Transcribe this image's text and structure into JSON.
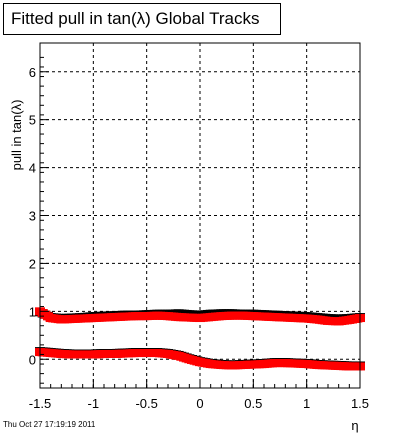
{
  "chart_data": {
    "type": "scatter",
    "title": "Fitted pull in tan(λ)  Global Tracks",
    "xlabel": "η",
    "ylabel": "pull in tan(λ)",
    "xlim": [
      -1.5,
      1.5
    ],
    "ylim": [
      -0.6,
      6.6
    ],
    "x_ticks": [
      "-1.5",
      "-1",
      "-0.5",
      "0",
      "0.5",
      "1",
      "1.5"
    ],
    "y_ticks": [
      "0",
      "1",
      "2",
      "3",
      "4",
      "5",
      "6"
    ],
    "grid": true,
    "series": [
      {
        "color": "#000000",
        "x": [
          -1.5,
          -1.4,
          -1.3,
          -1.2,
          -1.1,
          -1.0,
          -0.9,
          -0.8,
          -0.7,
          -0.6,
          -0.5,
          -0.4,
          -0.3,
          -0.2,
          -0.1,
          0.0,
          0.1,
          0.2,
          0.3,
          0.4,
          0.5,
          0.6,
          0.7,
          0.8,
          0.9,
          1.0,
          1.1,
          1.2,
          1.3,
          1.4,
          1.5
        ],
        "y": [
          0.98,
          0.88,
          0.86,
          0.87,
          0.88,
          0.9,
          0.91,
          0.92,
          0.93,
          0.93,
          0.94,
          0.95,
          0.95,
          0.96,
          0.94,
          0.93,
          0.95,
          0.96,
          0.96,
          0.95,
          0.95,
          0.94,
          0.93,
          0.92,
          0.91,
          0.9,
          0.88,
          0.86,
          0.85,
          0.86,
          0.88
        ]
      },
      {
        "color": "#ff0000",
        "x": [
          -1.5,
          -1.4,
          -1.3,
          -1.2,
          -1.1,
          -1.0,
          -0.9,
          -0.8,
          -0.7,
          -0.6,
          -0.5,
          -0.4,
          -0.3,
          -0.2,
          -0.1,
          0.0,
          0.1,
          0.2,
          0.3,
          0.4,
          0.5,
          0.6,
          0.7,
          0.8,
          0.9,
          1.0,
          1.1,
          1.2,
          1.3,
          1.4,
          1.5
        ],
        "y": [
          1.0,
          0.86,
          0.83,
          0.84,
          0.85,
          0.86,
          0.87,
          0.88,
          0.89,
          0.9,
          0.9,
          0.91,
          0.9,
          0.88,
          0.87,
          0.86,
          0.88,
          0.9,
          0.91,
          0.91,
          0.9,
          0.89,
          0.88,
          0.87,
          0.86,
          0.85,
          0.83,
          0.8,
          0.79,
          0.82,
          0.86
        ]
      },
      {
        "color": "#000000",
        "x": [
          -1.5,
          -1.4,
          -1.3,
          -1.2,
          -1.1,
          -1.0,
          -0.9,
          -0.8,
          -0.7,
          -0.6,
          -0.5,
          -0.4,
          -0.3,
          -0.2,
          -0.1,
          0.0,
          0.1,
          0.2,
          0.3,
          0.4,
          0.5,
          0.6,
          0.7,
          0.8,
          0.9,
          1.0,
          1.1,
          1.2,
          1.3,
          1.4,
          1.5
        ],
        "y": [
          0.17,
          0.15,
          0.13,
          0.12,
          0.12,
          0.12,
          0.13,
          0.13,
          0.14,
          0.15,
          0.15,
          0.15,
          0.13,
          0.09,
          0.02,
          -0.04,
          -0.08,
          -0.1,
          -0.11,
          -0.1,
          -0.09,
          -0.08,
          -0.06,
          -0.06,
          -0.07,
          -0.08,
          -0.1,
          -0.11,
          -0.12,
          -0.13,
          -0.13
        ]
      },
      {
        "color": "#ff0000",
        "x": [
          -1.5,
          -1.4,
          -1.3,
          -1.2,
          -1.1,
          -1.0,
          -0.9,
          -0.8,
          -0.7,
          -0.6,
          -0.5,
          -0.4,
          -0.3,
          -0.2,
          -0.1,
          0.0,
          0.1,
          0.2,
          0.3,
          0.4,
          0.5,
          0.6,
          0.7,
          0.8,
          0.9,
          1.0,
          1.1,
          1.2,
          1.3,
          1.4,
          1.5
        ],
        "y": [
          0.15,
          0.13,
          0.11,
          0.1,
          0.1,
          0.1,
          0.11,
          0.11,
          0.12,
          0.13,
          0.13,
          0.13,
          0.11,
          0.07,
          0.0,
          -0.06,
          -0.1,
          -0.12,
          -0.13,
          -0.12,
          -0.11,
          -0.1,
          -0.08,
          -0.08,
          -0.09,
          -0.1,
          -0.12,
          -0.13,
          -0.14,
          -0.15,
          -0.15
        ]
      }
    ]
  },
  "footer": {
    "timestamp": "Thu Oct 27 17:19:19 2011"
  }
}
